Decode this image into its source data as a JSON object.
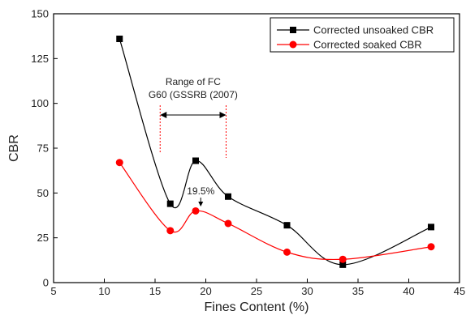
{
  "chart_data": {
    "type": "line",
    "xlabel": "Fines Content (%)",
    "ylabel": "CBR",
    "xlim": [
      5,
      45
    ],
    "ylim": [
      0,
      150
    ],
    "x_ticks": [
      5,
      10,
      15,
      20,
      25,
      30,
      35,
      40,
      45
    ],
    "y_ticks": [
      0,
      25,
      50,
      75,
      100,
      125,
      150
    ],
    "grid": false,
    "legend_position": "top-right",
    "series": [
      {
        "name": "Corrected unsoaked CBR",
        "color": "#000000",
        "marker": "square",
        "x": [
          11.5,
          16.5,
          19.0,
          22.2,
          28.0,
          33.5,
          42.2
        ],
        "y": [
          136,
          44,
          68,
          48,
          32,
          10,
          31
        ]
      },
      {
        "name": "Corrected soaked CBR",
        "color": "#ff0000",
        "marker": "circle",
        "x": [
          11.5,
          16.5,
          19.0,
          22.2,
          28.0,
          33.5,
          42.2
        ],
        "y": [
          67,
          29,
          40,
          33,
          17,
          13,
          20
        ]
      }
    ],
    "annotations": {
      "range_label_line1": "Range of FC",
      "range_label_line2": "G60 (GSSRB (2007)",
      "range_x_min": 15.5,
      "range_x_max": 22.0,
      "peak_label": "19.5%",
      "peak_x": 19.5,
      "peak_y": 42
    }
  }
}
